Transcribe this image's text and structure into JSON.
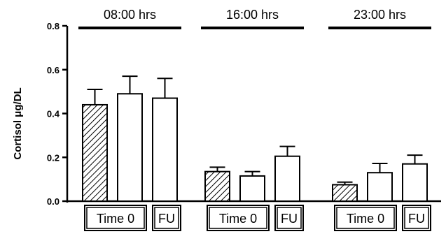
{
  "chart_data": {
    "type": "bar",
    "ylabel": "Cortisol μg/DL",
    "ylim": [
      0,
      0.8
    ],
    "yticks": [
      "0.0",
      "0.2",
      "0.4",
      "0.6",
      "0.8"
    ],
    "grid": false,
    "groups": [
      {
        "label": "08:00 hrs",
        "bars": [
          {
            "value": 0.44,
            "error": 0.07,
            "pattern": "hatched"
          },
          {
            "value": 0.49,
            "error": 0.08,
            "pattern": "open"
          },
          {
            "value": 0.47,
            "error": 0.09,
            "pattern": "open"
          }
        ],
        "boxes": [
          "Time 0",
          "FU"
        ]
      },
      {
        "label": "16:00 hrs",
        "bars": [
          {
            "value": 0.135,
            "error": 0.02,
            "pattern": "hatched"
          },
          {
            "value": 0.115,
            "error": 0.02,
            "pattern": "open"
          },
          {
            "value": 0.205,
            "error": 0.045,
            "pattern": "open"
          }
        ],
        "boxes": [
          "Time 0",
          "FU"
        ]
      },
      {
        "label": "23:00 hrs",
        "bars": [
          {
            "value": 0.075,
            "error": 0.012,
            "pattern": "hatched"
          },
          {
            "value": 0.13,
            "error": 0.042,
            "pattern": "open"
          },
          {
            "value": 0.17,
            "error": 0.04,
            "pattern": "open"
          }
        ],
        "boxes": [
          "Time 0",
          "FU"
        ]
      }
    ]
  }
}
